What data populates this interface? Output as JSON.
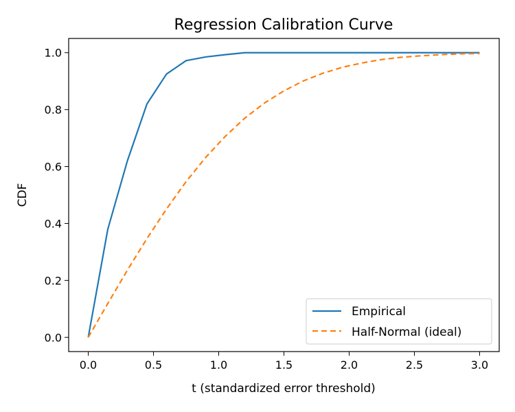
{
  "chart_data": {
    "type": "line",
    "title": "Regression Calibration Curve",
    "xlabel": "t (standardized error threshold)",
    "ylabel": "CDF",
    "xlim": [
      -0.15,
      3.15
    ],
    "ylim": [
      -0.05,
      1.05
    ],
    "xticks": [
      0.0,
      0.5,
      1.0,
      1.5,
      2.0,
      2.5,
      3.0
    ],
    "xtick_labels": [
      "0.0",
      "0.5",
      "1.0",
      "1.5",
      "2.0",
      "2.5",
      "3.0"
    ],
    "yticks": [
      0.0,
      0.2,
      0.4,
      0.6,
      0.8,
      1.0
    ],
    "ytick_labels": [
      "0.0",
      "0.2",
      "0.4",
      "0.6",
      "0.8",
      "1.0"
    ],
    "grid": false,
    "legend_position": "bottom-right",
    "series": [
      {
        "name": "Empirical",
        "color": "#1f77b4",
        "style": "solid",
        "x": [
          0.0,
          0.15,
          0.3,
          0.45,
          0.6,
          0.75,
          0.9,
          1.05,
          1.2,
          1.35,
          1.5,
          1.8,
          2.1,
          2.4,
          2.7,
          3.0
        ],
        "y": [
          0.0,
          0.38,
          0.62,
          0.82,
          0.925,
          0.972,
          0.985,
          0.993,
          1.0,
          1.0,
          1.0,
          1.0,
          1.0,
          1.0,
          1.0,
          1.0
        ]
      },
      {
        "name": "Half-Normal (ideal)",
        "color": "#ff7f0e",
        "style": "dashed",
        "x": [
          0.0,
          0.15,
          0.3,
          0.45,
          0.6,
          0.75,
          0.9,
          1.05,
          1.2,
          1.35,
          1.5,
          1.65,
          1.8,
          1.95,
          2.1,
          2.25,
          2.4,
          2.55,
          2.7,
          2.85,
          3.0
        ],
        "y": [
          0.0,
          0.119,
          0.236,
          0.347,
          0.451,
          0.547,
          0.632,
          0.706,
          0.77,
          0.823,
          0.866,
          0.901,
          0.928,
          0.949,
          0.964,
          0.976,
          0.984,
          0.989,
          0.993,
          0.996,
          0.997
        ]
      }
    ]
  }
}
